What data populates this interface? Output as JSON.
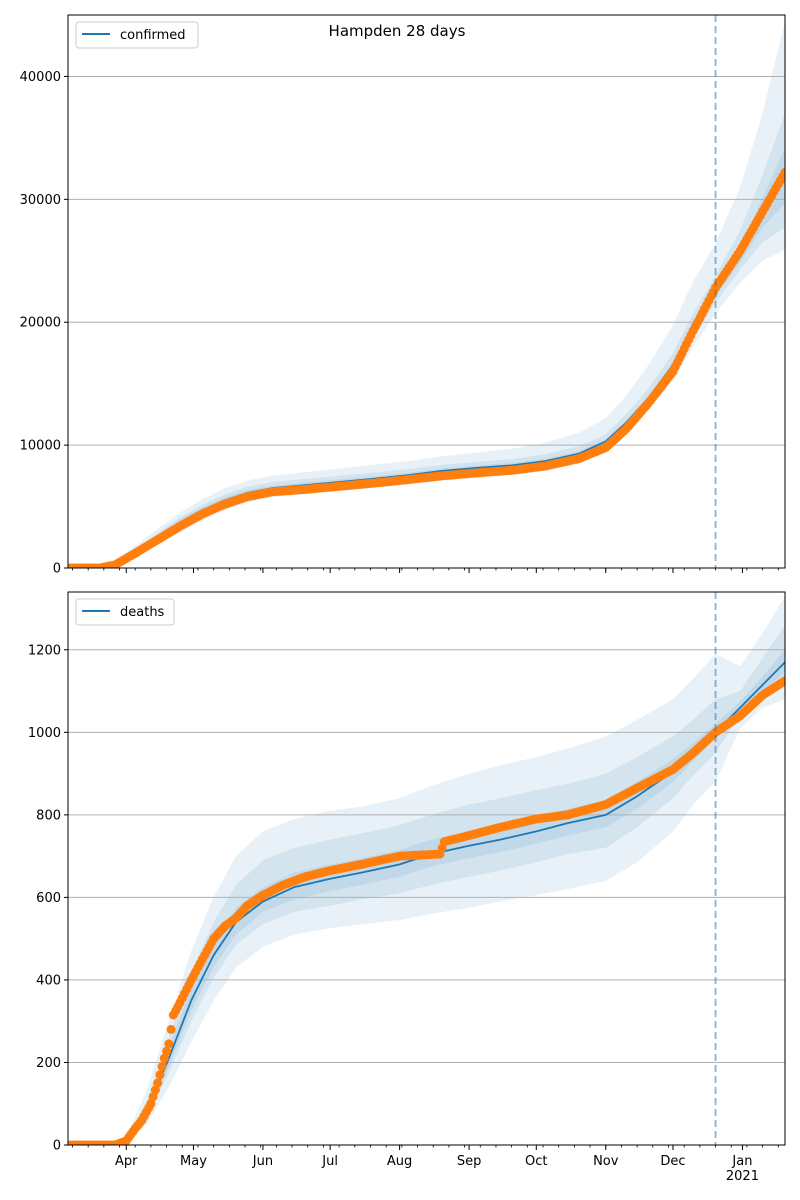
{
  "figure": {
    "title": "Hampden 28 days"
  },
  "colors": {
    "model_line": "#1f77b4",
    "observed_points": "#ff7f0e",
    "band": "#1f77b4",
    "grid": "#b0b0b0",
    "forecast_marker": "#1f77b4"
  },
  "chart_data": [
    {
      "type": "line",
      "panel": "top",
      "title": "Hampden 28 days",
      "xlabel": "",
      "ylabel": "",
      "x_range": [
        "2020-03-06",
        "2021-01-20"
      ],
      "ylim": [
        0,
        45000
      ],
      "y_ticks": [
        0,
        10000,
        20000,
        30000,
        40000
      ],
      "y_tick_labels": [
        "0",
        "10000",
        "20000",
        "30000",
        "40000"
      ],
      "x_tick_labels_shown": false,
      "grid": "horizontal",
      "legend": {
        "placement": "top-left",
        "entries": [
          "confirmed"
        ]
      },
      "forecast_start": "2020-12-20",
      "series": [
        {
          "name": "confirmed",
          "style": "line",
          "x": [
            "2020-03-06",
            "2020-03-20",
            "2020-03-27",
            "2020-04-05",
            "2020-04-15",
            "2020-04-25",
            "2020-05-05",
            "2020-05-15",
            "2020-05-25",
            "2020-06-05",
            "2020-06-20",
            "2020-07-05",
            "2020-07-20",
            "2020-08-05",
            "2020-08-20",
            "2020-09-05",
            "2020-09-20",
            "2020-10-05",
            "2020-10-20",
            "2020-11-01",
            "2020-11-10",
            "2020-11-20",
            "2020-12-01",
            "2020-12-10",
            "2020-12-20",
            "2020-12-31",
            "2021-01-10",
            "2021-01-20"
          ],
          "y": [
            0,
            0,
            300,
            1300,
            2500,
            3700,
            4700,
            5500,
            6100,
            6500,
            6750,
            7000,
            7250,
            7550,
            7900,
            8150,
            8350,
            8700,
            9300,
            10300,
            11800,
            13800,
            16500,
            19500,
            22500,
            25500,
            28800,
            31700
          ]
        },
        {
          "style": "points",
          "x": [
            "2020-03-06",
            "2020-03-20",
            "2020-03-27",
            "2020-04-05",
            "2020-04-15",
            "2020-04-25",
            "2020-05-05",
            "2020-05-15",
            "2020-05-25",
            "2020-06-05",
            "2020-06-20",
            "2020-07-05",
            "2020-07-20",
            "2020-08-05",
            "2020-08-20",
            "2020-09-05",
            "2020-09-20",
            "2020-10-05",
            "2020-10-20",
            "2020-11-01",
            "2020-11-10",
            "2020-11-20",
            "2020-12-01",
            "2020-12-10",
            "2020-12-20",
            "2020-12-31",
            "2021-01-10",
            "2021-01-20"
          ],
          "y": [
            0,
            0,
            250,
            1200,
            2300,
            3400,
            4400,
            5200,
            5800,
            6200,
            6400,
            6650,
            6900,
            7200,
            7500,
            7750,
            7950,
            8300,
            8900,
            9800,
            11300,
            13400,
            16000,
            19300,
            22800,
            25800,
            29000,
            32200
          ]
        }
      ],
      "bands": [
        {
          "x": [
            "2020-03-06",
            "2020-03-20",
            "2020-03-27",
            "2020-04-05",
            "2020-04-15",
            "2020-04-25",
            "2020-05-05",
            "2020-05-15",
            "2020-05-25",
            "2020-06-05",
            "2020-06-20",
            "2020-07-05",
            "2020-07-20",
            "2020-08-05",
            "2020-08-20",
            "2020-09-05",
            "2020-09-20",
            "2020-10-05",
            "2020-10-20",
            "2020-11-01",
            "2020-11-10",
            "2020-11-20",
            "2020-12-01",
            "2020-12-10",
            "2020-12-20",
            "2020-12-31",
            "2021-01-10",
            "2021-01-20"
          ],
          "lower": [
            0,
            0,
            150,
            900,
            1900,
            2900,
            3900,
            4700,
            5300,
            5750,
            6000,
            6250,
            6500,
            6800,
            7100,
            7350,
            7550,
            7900,
            8500,
            9500,
            10900,
            12900,
            15200,
            18000,
            20700,
            23200,
            25000,
            25900
          ],
          "upper": [
            0,
            0,
            500,
            1800,
            3200,
            4500,
            5600,
            6500,
            7100,
            7500,
            7800,
            8100,
            8400,
            8700,
            9100,
            9400,
            9700,
            10200,
            11000,
            12200,
            14000,
            16500,
            19800,
            23300,
            26400,
            31000,
            37000,
            44500
          ]
        },
        {
          "x": [
            "2020-03-06",
            "2020-03-20",
            "2020-03-27",
            "2020-04-05",
            "2020-04-15",
            "2020-04-25",
            "2020-05-05",
            "2020-05-15",
            "2020-05-25",
            "2020-06-05",
            "2020-06-20",
            "2020-07-05",
            "2020-07-20",
            "2020-08-05",
            "2020-08-20",
            "2020-09-05",
            "2020-09-20",
            "2020-10-05",
            "2020-10-20",
            "2020-11-01",
            "2020-11-10",
            "2020-11-20",
            "2020-12-01",
            "2020-12-10",
            "2020-12-20",
            "2020-12-31",
            "2021-01-10",
            "2021-01-20"
          ],
          "lower": [
            0,
            0,
            200,
            1050,
            2100,
            3200,
            4200,
            5000,
            5600,
            6050,
            6300,
            6550,
            6800,
            7100,
            7400,
            7650,
            7850,
            8200,
            8800,
            9800,
            11300,
            13300,
            15800,
            18700,
            21600,
            24300,
            26500,
            27700
          ],
          "upper": [
            0,
            0,
            400,
            1550,
            2850,
            4100,
            5150,
            6000,
            6600,
            7000,
            7250,
            7500,
            7750,
            8050,
            8400,
            8650,
            8850,
            9250,
            9900,
            10900,
            12500,
            14600,
            17500,
            20700,
            23800,
            27500,
            32000,
            37000
          ]
        },
        {
          "x": [
            "2020-03-06",
            "2020-03-20",
            "2020-03-27",
            "2020-04-05",
            "2020-04-15",
            "2020-04-25",
            "2020-05-05",
            "2020-05-15",
            "2020-05-25",
            "2020-06-05",
            "2020-06-20",
            "2020-07-05",
            "2020-07-20",
            "2020-08-05",
            "2020-08-20",
            "2020-09-05",
            "2020-09-20",
            "2020-10-05",
            "2020-10-20",
            "2020-11-01",
            "2020-11-10",
            "2020-11-20",
            "2020-12-01",
            "2020-12-10",
            "2020-12-20",
            "2020-12-31",
            "2021-01-10",
            "2021-01-20"
          ],
          "lower": [
            0,
            0,
            250,
            1200,
            2300,
            3450,
            4450,
            5250,
            5850,
            6300,
            6550,
            6800,
            7050,
            7350,
            7700,
            7950,
            8150,
            8500,
            9100,
            10100,
            11600,
            13600,
            16200,
            19100,
            22100,
            24900,
            27700,
            29700
          ],
          "upper": [
            0,
            0,
            350,
            1400,
            2700,
            3950,
            4950,
            5750,
            6350,
            6700,
            6950,
            7200,
            7450,
            7750,
            8100,
            8350,
            8550,
            8900,
            9500,
            10500,
            12000,
            14000,
            16800,
            19900,
            22900,
            26200,
            30100,
            34200
          ]
        }
      ]
    },
    {
      "type": "line",
      "panel": "bottom",
      "xlabel": "",
      "ylabel": "",
      "x_range": [
        "2020-03-06",
        "2021-01-20"
      ],
      "ylim": [
        0,
        1340
      ],
      "y_ticks": [
        0,
        200,
        400,
        600,
        800,
        1000,
        1200
      ],
      "y_tick_labels": [
        "0",
        "200",
        "400",
        "600",
        "800",
        "1000",
        "1200"
      ],
      "x_ticks": [
        "2020-04-01",
        "2020-05-01",
        "2020-06-01",
        "2020-07-01",
        "2020-08-01",
        "2020-09-01",
        "2020-10-01",
        "2020-11-01",
        "2020-12-01",
        "2021-01-01"
      ],
      "x_tick_labels": [
        "Apr",
        "May",
        "Jun",
        "Jul",
        "Aug",
        "Sep",
        "Oct",
        "Nov",
        "Dec",
        "Jan\n2021"
      ],
      "grid": "horizontal",
      "legend": {
        "placement": "top-left",
        "entries": [
          "deaths"
        ]
      },
      "forecast_start": "2020-12-20",
      "series": [
        {
          "name": "deaths",
          "style": "line",
          "x": [
            "2020-03-06",
            "2020-03-27",
            "2020-04-01",
            "2020-04-10",
            "2020-04-20",
            "2020-04-30",
            "2020-05-10",
            "2020-05-20",
            "2020-06-01",
            "2020-06-15",
            "2020-07-01",
            "2020-07-15",
            "2020-08-01",
            "2020-08-15",
            "2020-09-01",
            "2020-09-15",
            "2020-10-01",
            "2020-10-15",
            "2020-11-01",
            "2020-11-15",
            "2020-12-01",
            "2020-12-10",
            "2020-12-20",
            "2020-12-31",
            "2021-01-10",
            "2021-01-20"
          ],
          "y": [
            0,
            0,
            10,
            80,
            210,
            350,
            460,
            540,
            590,
            625,
            645,
            660,
            680,
            705,
            725,
            740,
            760,
            780,
            800,
            845,
            905,
            950,
            1000,
            1060,
            1115,
            1170
          ]
        },
        {
          "style": "points",
          "x": [
            "2020-03-06",
            "2020-03-27",
            "2020-04-01",
            "2020-04-05",
            "2020-04-08",
            "2020-04-12",
            "2020-04-15",
            "2020-04-18",
            "2020-04-20",
            "2020-04-22",
            "2020-04-25",
            "2020-04-30",
            "2020-05-05",
            "2020-05-10",
            "2020-05-15",
            "2020-05-20",
            "2020-05-25",
            "2020-06-01",
            "2020-06-10",
            "2020-06-20",
            "2020-07-01",
            "2020-07-15",
            "2020-08-01",
            "2020-08-19",
            "2020-08-21",
            "2020-09-01",
            "2020-09-15",
            "2020-10-01",
            "2020-10-15",
            "2020-11-01",
            "2020-11-15",
            "2020-12-01",
            "2020-12-10",
            "2020-12-20",
            "2020-12-31",
            "2021-01-10",
            "2021-01-20"
          ],
          "y": [
            0,
            0,
            10,
            40,
            60,
            100,
            150,
            210,
            245,
            315,
            345,
            400,
            450,
            500,
            530,
            550,
            580,
            605,
            630,
            650,
            665,
            680,
            700,
            705,
            735,
            750,
            770,
            790,
            800,
            825,
            865,
            910,
            950,
            1000,
            1040,
            1090,
            1125
          ]
        }
      ],
      "bands": [
        {
          "x": [
            "2020-03-06",
            "2020-03-27",
            "2020-04-01",
            "2020-04-10",
            "2020-04-20",
            "2020-04-30",
            "2020-05-10",
            "2020-05-20",
            "2020-06-01",
            "2020-06-15",
            "2020-07-01",
            "2020-07-15",
            "2020-08-01",
            "2020-08-15",
            "2020-09-01",
            "2020-09-15",
            "2020-10-01",
            "2020-10-15",
            "2020-11-01",
            "2020-11-15",
            "2020-12-01",
            "2020-12-10",
            "2020-12-20",
            "2020-12-31",
            "2021-01-10",
            "2021-01-20"
          ],
          "lower": [
            0,
            0,
            5,
            50,
            140,
            250,
            350,
            430,
            480,
            510,
            525,
            535,
            545,
            560,
            575,
            590,
            605,
            620,
            640,
            685,
            760,
            825,
            880,
            1010,
            1060,
            1080
          ],
          "upper": [
            0,
            0,
            20,
            130,
            300,
            470,
            600,
            700,
            760,
            790,
            810,
            820,
            840,
            870,
            900,
            920,
            940,
            960,
            990,
            1030,
            1080,
            1130,
            1190,
            1160,
            1240,
            1330
          ]
        },
        {
          "x": [
            "2020-03-06",
            "2020-03-27",
            "2020-04-01",
            "2020-04-10",
            "2020-04-20",
            "2020-04-30",
            "2020-05-10",
            "2020-05-20",
            "2020-06-01",
            "2020-06-15",
            "2020-07-01",
            "2020-07-15",
            "2020-08-01",
            "2020-08-15",
            "2020-09-01",
            "2020-09-15",
            "2020-10-01",
            "2020-10-15",
            "2020-11-01",
            "2020-11-15",
            "2020-12-01",
            "2020-12-10",
            "2020-12-20",
            "2020-12-31",
            "2021-01-10",
            "2021-01-20"
          ],
          "lower": [
            0,
            0,
            7,
            65,
            175,
            300,
            405,
            485,
            535,
            565,
            580,
            595,
            610,
            630,
            650,
            665,
            685,
            705,
            720,
            770,
            840,
            895,
            950,
            1040,
            1085,
            1120
          ],
          "upper": [
            0,
            0,
            15,
            105,
            260,
            420,
            540,
            630,
            690,
            720,
            740,
            755,
            775,
            800,
            825,
            840,
            860,
            875,
            900,
            940,
            990,
            1030,
            1080,
            1100,
            1180,
            1260
          ]
        },
        {
          "x": [
            "2020-03-06",
            "2020-03-27",
            "2020-04-01",
            "2020-04-10",
            "2020-04-20",
            "2020-04-30",
            "2020-05-10",
            "2020-05-20",
            "2020-06-01",
            "2020-06-15",
            "2020-07-01",
            "2020-07-15",
            "2020-08-01",
            "2020-08-15",
            "2020-09-01",
            "2020-09-15",
            "2020-10-01",
            "2020-10-15",
            "2020-11-01",
            "2020-11-15",
            "2020-12-01",
            "2020-12-10",
            "2020-12-20",
            "2020-12-31",
            "2021-01-10",
            "2021-01-20"
          ],
          "lower": [
            0,
            0,
            8,
            72,
            190,
            325,
            430,
            510,
            565,
            595,
            615,
            630,
            650,
            675,
            695,
            710,
            730,
            750,
            770,
            815,
            880,
            930,
            985,
            1050,
            1100,
            1145
          ],
          "upper": [
            0,
            0,
            13,
            92,
            235,
            380,
            490,
            575,
            625,
            660,
            680,
            695,
            715,
            740,
            760,
            775,
            795,
            815,
            835,
            880,
            935,
            975,
            1020,
            1075,
            1135,
            1200
          ]
        }
      ]
    }
  ]
}
